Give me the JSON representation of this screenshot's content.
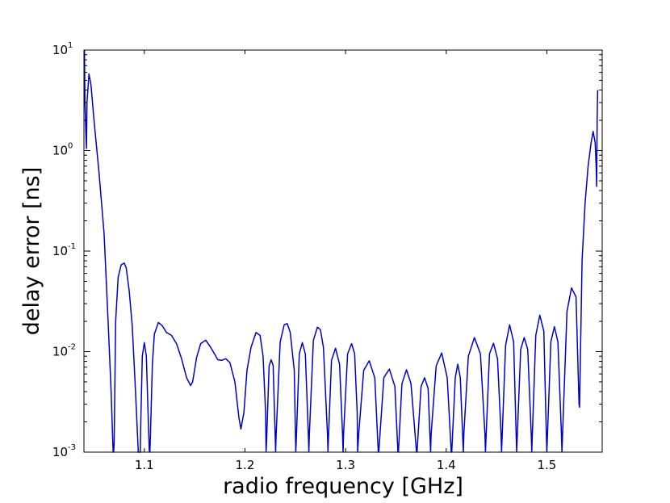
{
  "chart_data": {
    "type": "line",
    "title": "",
    "xlabel": "radio frequency [GHz]",
    "ylabel": "delay error [ns]",
    "xlim": [
      1.04,
      1.555
    ],
    "ylim": [
      0.001,
      10
    ],
    "yscale": "log",
    "grid": false,
    "line_color": "#0000cc",
    "x_ticks": [
      {
        "value": 1.1,
        "label": "1.1"
      },
      {
        "value": 1.2,
        "label": "1.2"
      },
      {
        "value": 1.3,
        "label": "1.3"
      },
      {
        "value": 1.4,
        "label": "1.4"
      },
      {
        "value": 1.5,
        "label": "1.5"
      }
    ],
    "y_ticks": [
      {
        "value": 0.001,
        "base": "10",
        "exp": "-3"
      },
      {
        "value": 0.01,
        "base": "10",
        "exp": "-2"
      },
      {
        "value": 0.1,
        "base": "10",
        "exp": "-1"
      },
      {
        "value": 1,
        "base": "10",
        "exp": "0"
      },
      {
        "value": 10,
        "base": "10",
        "exp": "1"
      }
    ],
    "series": [
      {
        "x": [
          1.0405,
          1.041,
          1.042,
          1.0425,
          1.043,
          1.045,
          1.047,
          1.05,
          1.055,
          1.06,
          1.064,
          1.067,
          1.069,
          1.0695,
          1.07,
          1.0715,
          1.074,
          1.077,
          1.08,
          1.082,
          1.085,
          1.088,
          1.091,
          1.094,
          1.0955,
          1.096,
          1.0965,
          1.098,
          1.1,
          1.102,
          1.104,
          1.105,
          1.1055,
          1.106,
          1.108,
          1.11,
          1.114,
          1.118,
          1.122,
          1.127,
          1.132,
          1.137,
          1.142,
          1.146,
          1.148,
          1.152,
          1.156,
          1.161,
          1.166,
          1.17,
          1.173,
          1.177,
          1.181,
          1.185,
          1.19,
          1.194,
          1.196,
          1.199,
          1.202,
          1.206,
          1.211,
          1.215,
          1.218,
          1.2205,
          1.221,
          1.2215,
          1.224,
          1.226,
          1.228,
          1.23,
          1.2305,
          1.231,
          1.235,
          1.239,
          1.242,
          1.245,
          1.249,
          1.2505,
          1.251,
          1.254,
          1.257,
          1.26,
          1.263,
          1.2635,
          1.264,
          1.268,
          1.272,
          1.275,
          1.278,
          1.282,
          1.2825,
          1.283,
          1.286,
          1.29,
          1.294,
          1.297,
          1.2975,
          1.298,
          1.302,
          1.306,
          1.309,
          1.3115,
          1.312,
          1.313,
          1.318,
          1.3235,
          1.329,
          1.3325,
          1.333,
          1.338,
          1.3435,
          1.349,
          1.352,
          1.3525,
          1.356,
          1.3605,
          1.365,
          1.3705,
          1.371,
          1.375,
          1.3785,
          1.382,
          1.3845,
          1.385,
          1.39,
          1.3955,
          1.401,
          1.405,
          1.4055,
          1.409,
          1.4115,
          1.414,
          1.417,
          1.4175,
          1.422,
          1.428,
          1.434,
          1.4385,
          1.439,
          1.443,
          1.447,
          1.451,
          1.4545,
          1.455,
          1.459,
          1.463,
          1.467,
          1.4695,
          1.47,
          1.474,
          1.4775,
          1.481,
          1.4845,
          1.485,
          1.489,
          1.493,
          1.497,
          1.4995,
          1.5,
          1.504,
          1.5075,
          1.511,
          1.5145,
          1.515,
          1.52,
          1.5245,
          1.529,
          1.532,
          1.5325,
          1.535,
          1.538,
          1.541,
          1.544,
          1.546,
          1.548,
          1.549,
          1.5495,
          1.55,
          1.5505
        ],
        "y": [
          10,
          3,
          1.4,
          1.05,
          3,
          5.8,
          4.5,
          2,
          0.6,
          0.15,
          0.02,
          0.004,
          0.001,
          0.001,
          0.0012,
          0.02,
          0.055,
          0.073,
          0.076,
          0.068,
          0.04,
          0.018,
          0.0045,
          0.001,
          0.001,
          0.001,
          0.002,
          0.009,
          0.0123,
          0.009,
          0.002,
          0.001,
          0.001,
          0.0014,
          0.0075,
          0.015,
          0.0195,
          0.018,
          0.0155,
          0.0145,
          0.012,
          0.0085,
          0.0055,
          0.0046,
          0.005,
          0.0088,
          0.012,
          0.013,
          0.011,
          0.0094,
          0.0083,
          0.0082,
          0.0085,
          0.0078,
          0.005,
          0.0022,
          0.0017,
          0.0025,
          0.0065,
          0.011,
          0.0155,
          0.0145,
          0.009,
          0.0025,
          0.001,
          0.0013,
          0.0072,
          0.0083,
          0.0073,
          0.0015,
          0.001,
          0.0015,
          0.0125,
          0.0185,
          0.019,
          0.0155,
          0.0065,
          0.001,
          0.0013,
          0.0095,
          0.0123,
          0.0095,
          0.0015,
          0.001,
          0.0015,
          0.013,
          0.0175,
          0.0165,
          0.011,
          0.0015,
          0.001,
          0.0014,
          0.0082,
          0.0108,
          0.0075,
          0.0015,
          0.001,
          0.0015,
          0.0095,
          0.012,
          0.0095,
          0.0025,
          0.001,
          0.0015,
          0.0065,
          0.0081,
          0.0055,
          0.001,
          0.001,
          0.0055,
          0.0067,
          0.0045,
          0.001,
          0.001,
          0.0048,
          0.0066,
          0.0048,
          0.001,
          0.001,
          0.0045,
          0.0055,
          0.0043,
          0.001,
          0.0015,
          0.0072,
          0.0097,
          0.0055,
          0.001,
          0.001,
          0.0055,
          0.0075,
          0.0055,
          0.001,
          0.0015,
          0.009,
          0.0138,
          0.0095,
          0.0015,
          0.001,
          0.0095,
          0.0121,
          0.0085,
          0.0015,
          0.001,
          0.0115,
          0.0185,
          0.0125,
          0.0015,
          0.001,
          0.0105,
          0.0138,
          0.0105,
          0.0015,
          0.001,
          0.0145,
          0.023,
          0.016,
          0.0015,
          0.001,
          0.0125,
          0.0177,
          0.0125,
          0.0015,
          0.001,
          0.025,
          0.043,
          0.035,
          0.003,
          0.0028,
          0.08,
          0.3,
          0.7,
          1.2,
          1.55,
          1.2,
          0.7,
          0.44,
          2,
          4
        ]
      }
    ]
  }
}
